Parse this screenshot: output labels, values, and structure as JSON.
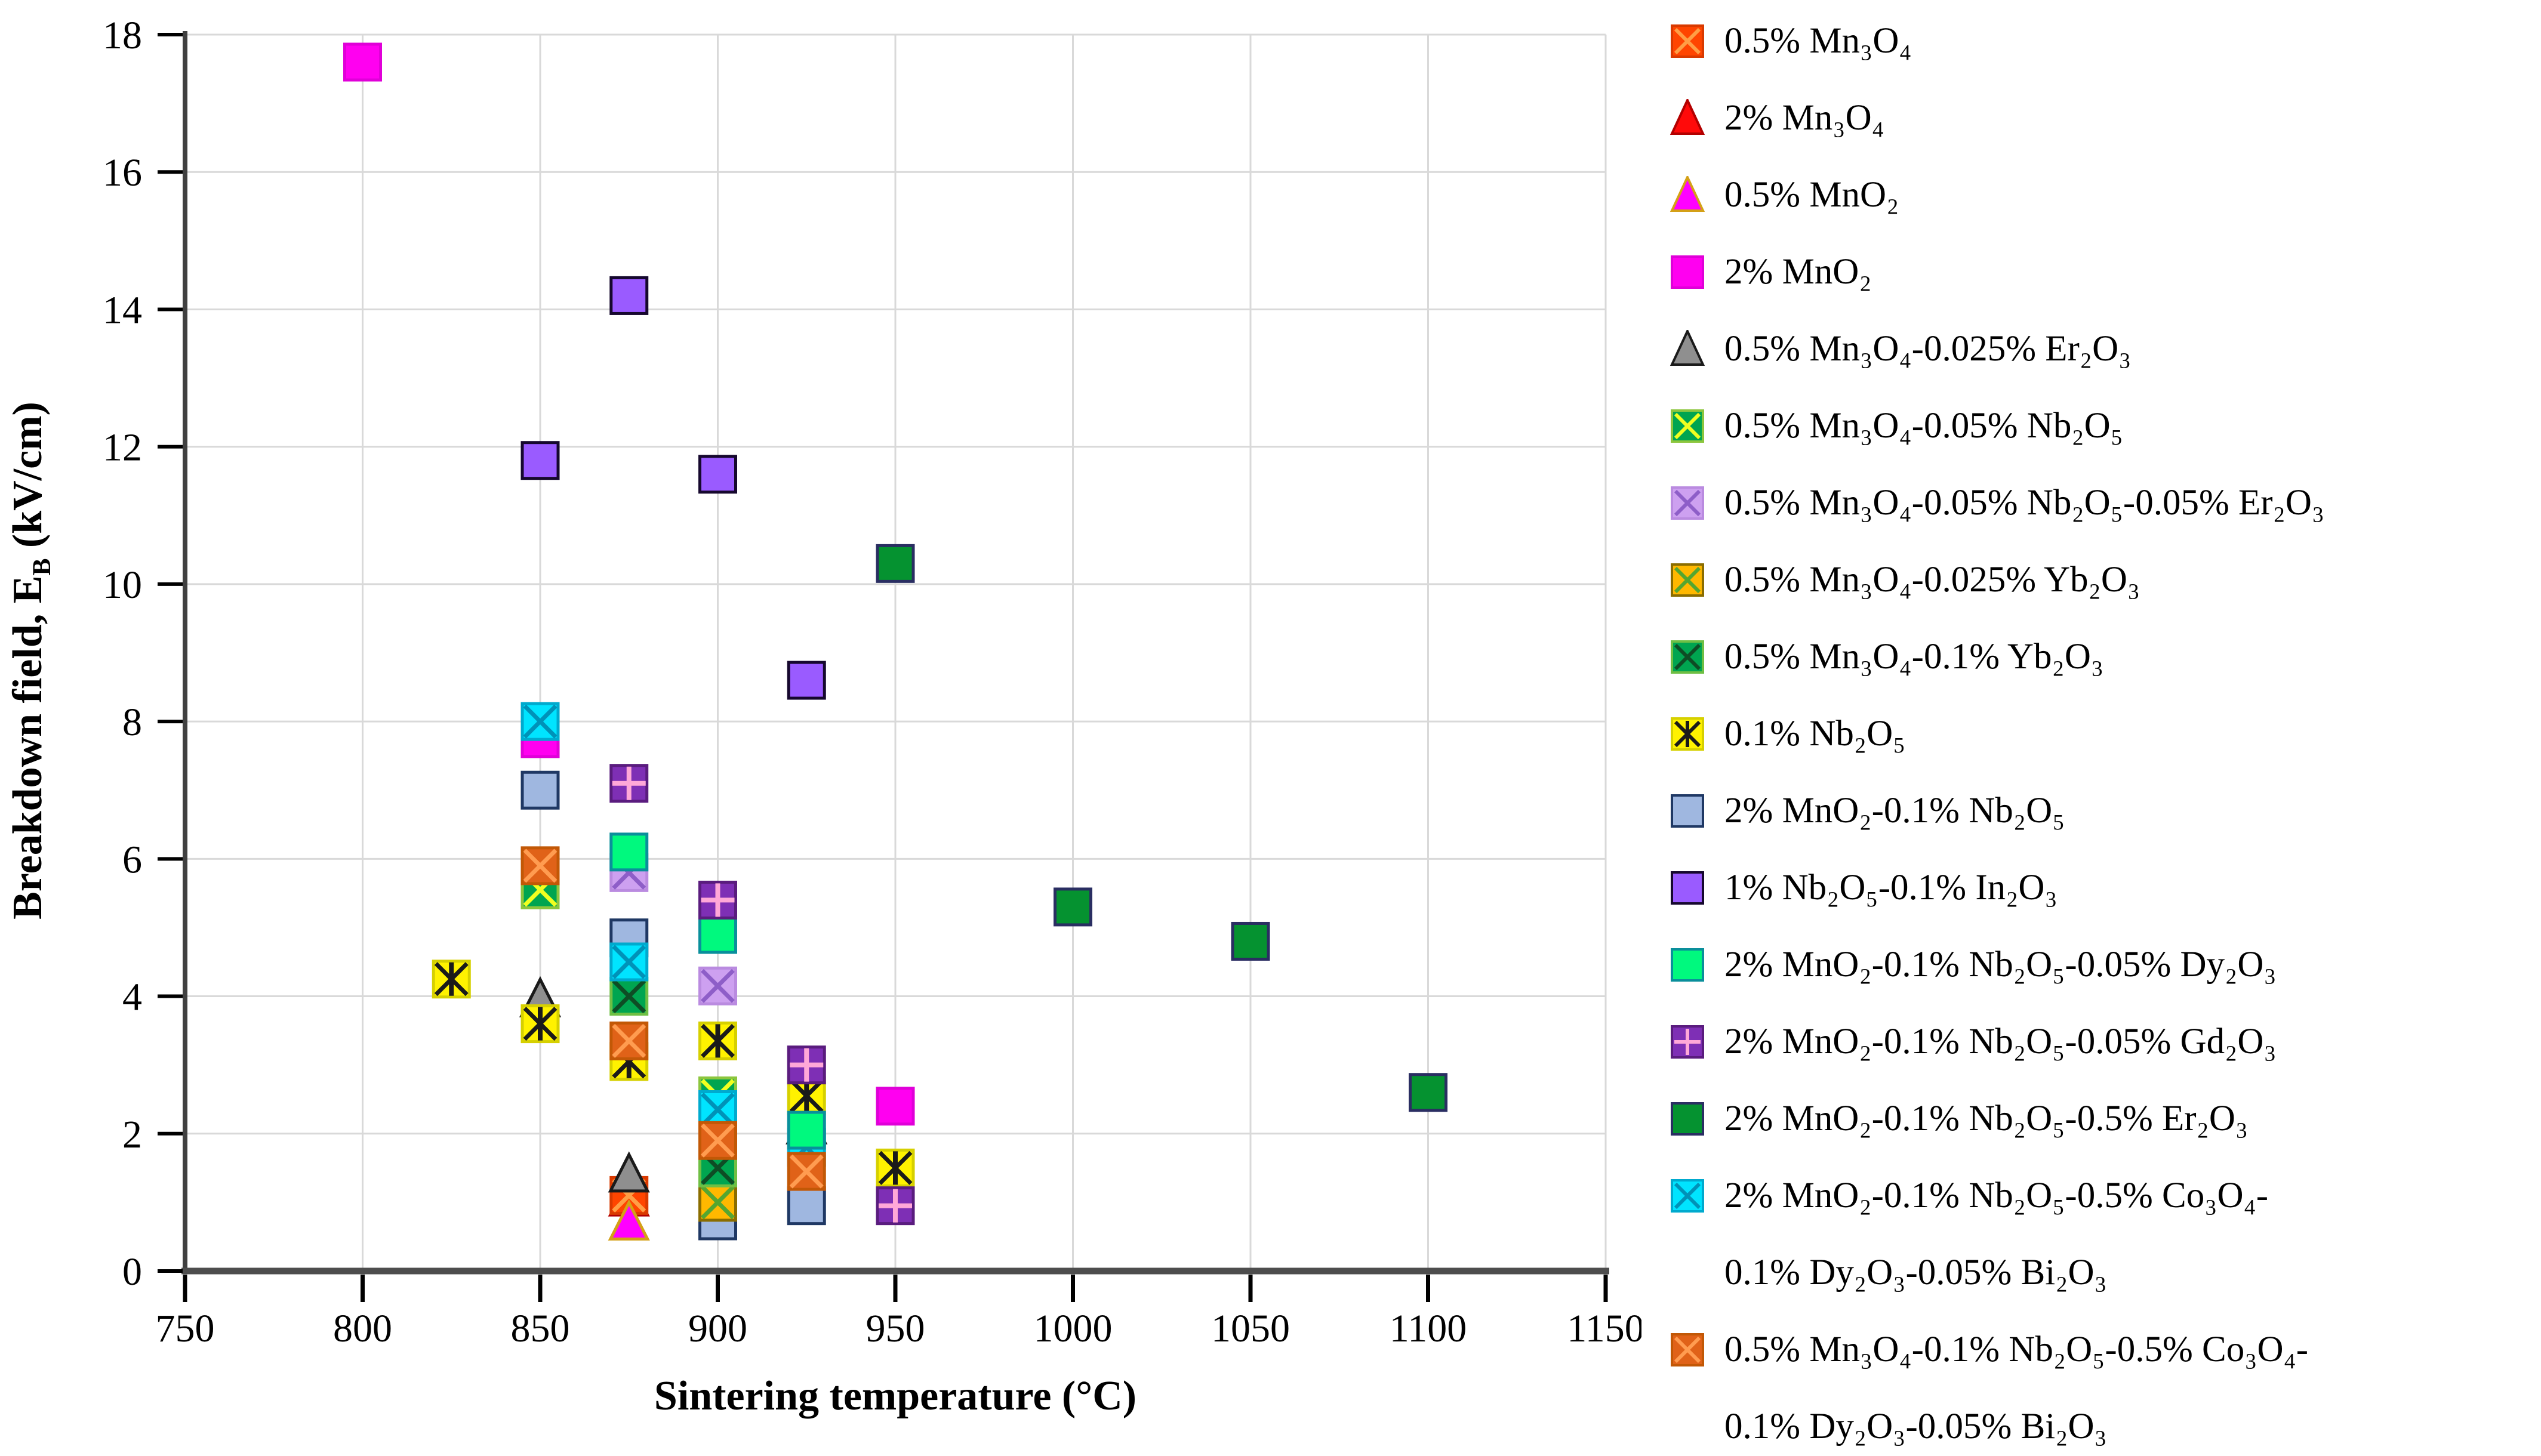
{
  "figure": {
    "background": "#FFFFFF"
  },
  "colors": {
    "grid": "#D9D9D9",
    "y_axis_line": "#404040",
    "x_axis_line": "#4D4D4D",
    "tick": "#000000",
    "tick_label": "#000000"
  },
  "chart_data": {
    "type": "scatter",
    "title": "",
    "xlabel": "Sintering temperature (°C)",
    "ylabel": {
      "text": "Breakdown field, E",
      "sub": "B",
      "unit": " (kV/cm)"
    },
    "xlim": [
      750,
      1150
    ],
    "ylim": [
      0,
      18
    ],
    "xticks": [
      750,
      800,
      850,
      900,
      950,
      1000,
      1050,
      1100,
      1150
    ],
    "yticks": [
      0,
      2,
      4,
      6,
      8,
      10,
      12,
      14,
      16,
      18
    ],
    "grid": true,
    "legend_position": "right",
    "series": [
      {
        "name": "0.5% Mn₃O₄",
        "marker": {
          "shape": "square",
          "fill": "#FF4500",
          "stroke": "#D93A00",
          "pattern": "x",
          "pattern_color": "#FF9E45"
        },
        "points": [
          {
            "x": 875,
            "y": 1.1
          }
        ]
      },
      {
        "name": "2% Mn₃O₄",
        "marker": {
          "shape": "triangle",
          "fill": "#FF0A0A",
          "stroke": "#B30000",
          "pattern": "none",
          "pattern_color": ""
        },
        "points": [
          {
            "x": 875,
            "y": 1.05,
            "z": -1
          }
        ]
      },
      {
        "name": "0.5% MnO₂",
        "marker": {
          "shape": "triangle",
          "fill": "#FF00FF",
          "stroke": "#D4A017",
          "pattern": "none",
          "pattern_color": ""
        },
        "points": [
          {
            "x": 875,
            "y": 0.7
          }
        ]
      },
      {
        "name": "2% MnO₂",
        "marker": {
          "shape": "square",
          "fill": "#FF00F0",
          "stroke": "#E000D8",
          "pattern": "none",
          "pattern_color": ""
        },
        "points": [
          {
            "x": 800,
            "y": 17.6
          },
          {
            "x": 850,
            "y": 7.75,
            "z": -1
          },
          {
            "x": 950,
            "y": 2.4
          }
        ]
      },
      {
        "name": "0.5% Mn₃O₄-0.025% Er₂O₃",
        "marker": {
          "shape": "triangle",
          "fill": "#8F8F8F",
          "stroke": "#1A1A1A",
          "pattern": "none",
          "pattern_color": ""
        },
        "points": [
          {
            "x": 850,
            "y": 3.95,
            "z": -1
          },
          {
            "x": 875,
            "y": 1.4
          },
          {
            "x": 925,
            "y": 2.1,
            "z": -1
          }
        ]
      },
      {
        "name": "0.5% Mn₃O₄-0.05% Nb₂O₅",
        "marker": {
          "shape": "square",
          "fill": "#00A550",
          "stroke": "#8CC63E",
          "pattern": "x",
          "pattern_color": "#F0FF20"
        },
        "points": [
          {
            "x": 850,
            "y": 5.55,
            "z": -1
          },
          {
            "x": 900,
            "y": 2.55,
            "z": -1
          }
        ]
      },
      {
        "name": "0.5% Mn₃O₄-0.05% Nb₂O₅-0.05% Er₂O₃",
        "marker": {
          "shape": "square",
          "fill": "#CDA0F0",
          "stroke": "#BA8BE0",
          "pattern": "x",
          "pattern_color": "#8E5EC8"
        },
        "points": [
          {
            "x": 875,
            "y": 5.8,
            "z": -1
          },
          {
            "x": 900,
            "y": 4.15
          }
        ]
      },
      {
        "name": "0.5% Mn₃O₄-0.025% Yb₂O₃",
        "marker": {
          "shape": "square",
          "fill": "#FFB800",
          "stroke": "#8A6D00",
          "pattern": "x",
          "pattern_color": "#55A630"
        },
        "points": [
          {
            "x": 900,
            "y": 1.0
          }
        ]
      },
      {
        "name": "0.5% Mn₃O₄-0.1% Yb₂O₃",
        "marker": {
          "shape": "square",
          "fill": "#00A550",
          "stroke": "#6FBF44",
          "pattern": "x",
          "pattern_color": "#0E4D25"
        },
        "points": [
          {
            "x": 875,
            "y": 4.0
          },
          {
            "x": 900,
            "y": 1.5
          }
        ]
      },
      {
        "name": "0.1% Nb₂O₅",
        "marker": {
          "shape": "square",
          "fill": "#FFF200",
          "stroke": "#D6D000",
          "pattern": "asterisk",
          "pattern_color": "#1A1A1A"
        },
        "points": [
          {
            "x": 825,
            "y": 4.25
          },
          {
            "x": 850,
            "y": 3.6
          },
          {
            "x": 875,
            "y": 3.05,
            "z": -1
          },
          {
            "x": 900,
            "y": 3.35
          },
          {
            "x": 925,
            "y": 2.55
          },
          {
            "x": 950,
            "y": 1.5
          }
        ]
      },
      {
        "name": "2% MnO₂-0.1% Nb₂O₅",
        "marker": {
          "shape": "square",
          "fill": "#9FB7E0",
          "stroke": "#1F3864",
          "pattern": "none",
          "pattern_color": ""
        },
        "points": [
          {
            "x": 850,
            "y": 7.0
          },
          {
            "x": 875,
            "y": 4.85
          },
          {
            "x": 900,
            "y": 0.73,
            "z": -1
          },
          {
            "x": 925,
            "y": 0.95
          }
        ]
      },
      {
        "name": "1% Nb₂O₅-0.1% In₂O₃",
        "marker": {
          "shape": "square",
          "fill": "#9A5BFF",
          "stroke": "#16082E",
          "pattern": "none",
          "pattern_color": ""
        },
        "points": [
          {
            "x": 850,
            "y": 11.8
          },
          {
            "x": 875,
            "y": 14.2
          },
          {
            "x": 900,
            "y": 11.6
          },
          {
            "x": 925,
            "y": 8.6
          }
        ]
      },
      {
        "name": "2% MnO₂-0.1% Nb₂O₅-0.05% Dy₂O₃",
        "marker": {
          "shape": "square",
          "fill": "#00F97E",
          "stroke": "#0A8F9B",
          "pattern": "none",
          "pattern_color": ""
        },
        "points": [
          {
            "x": 875,
            "y": 6.1
          },
          {
            "x": 900,
            "y": 4.9
          },
          {
            "x": 925,
            "y": 2.05
          }
        ]
      },
      {
        "name": "2% MnO₂-0.1% Nb₂O₅-0.05% Gd₂O₃",
        "marker": {
          "shape": "square",
          "fill": "#7E2FB5",
          "stroke": "#5A1C7E",
          "pattern": "plus",
          "pattern_color": "#FFA8D8"
        },
        "points": [
          {
            "x": 875,
            "y": 7.1
          },
          {
            "x": 900,
            "y": 5.4
          },
          {
            "x": 925,
            "y": 3.0
          },
          {
            "x": 950,
            "y": 0.95
          }
        ]
      },
      {
        "name": "2% MnO₂-0.1% Nb₂O₅-0.5% Er₂O₃",
        "marker": {
          "shape": "square",
          "fill": "#059230",
          "stroke": "#2A2E62",
          "pattern": "none",
          "pattern_color": ""
        },
        "points": [
          {
            "x": 950,
            "y": 10.3
          },
          {
            "x": 1000,
            "y": 5.3
          },
          {
            "x": 1050,
            "y": 4.8
          },
          {
            "x": 1100,
            "y": 2.6
          }
        ]
      },
      {
        "name": "2% MnO₂-0.1% Nb₂O₅-0.5% Co₃O₄-\n0.1% Dy₂O₃-0.05% Bi₂O₃",
        "marker": {
          "shape": "square",
          "fill": "#00E4FF",
          "stroke": "#00AACE",
          "pattern": "x",
          "pattern_color": "#0092B8"
        },
        "points": [
          {
            "x": 850,
            "y": 8.0
          },
          {
            "x": 875,
            "y": 4.5
          },
          {
            "x": 900,
            "y": 2.35
          },
          {
            "x": 925,
            "y": 1.8,
            "z": -1
          },
          {
            "x": 950,
            "y": 1.3,
            "z": -1
          }
        ]
      },
      {
        "name": "0.5% Mn₃O₄-0.1% Nb₂O₅-0.5% Co₃O₄-\n0.1% Dy₂O₃-0.05% Bi₂O₃",
        "marker": {
          "shape": "square",
          "fill": "#E06218",
          "stroke": "#C25806",
          "pattern": "x",
          "pattern_color": "#FF9C50"
        },
        "points": [
          {
            "x": 850,
            "y": 5.9
          },
          {
            "x": 875,
            "y": 3.35
          },
          {
            "x": 900,
            "y": 1.9
          },
          {
            "x": 925,
            "y": 1.45
          }
        ]
      }
    ]
  }
}
